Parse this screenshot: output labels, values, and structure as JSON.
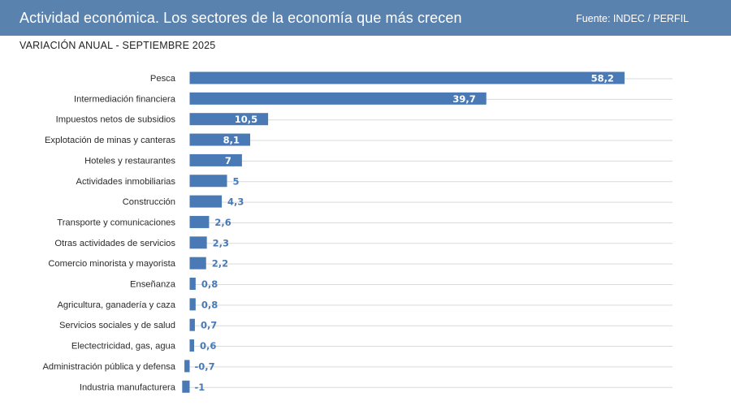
{
  "header": {
    "title": "Actividad económica. Los sectores de la economía que más crecen",
    "source": "Fuente: INDEC / PERFIL"
  },
  "subtitle": "VARIACIÓN ANUAL - SEPTIEMBRE 2025",
  "colors": {
    "header_bg": "#5a82ae",
    "bar": "#4a7ab5",
    "label_outside": "#4a7ab5",
    "gridline": "#d9d9d9"
  },
  "chart_data": {
    "type": "bar",
    "orientation": "horizontal",
    "title": "Actividad económica. Los sectores de la economía que más crecen",
    "subtitle": "VARIACIÓN ANUAL - SEPTIEMBRE 2025",
    "xlabel": "",
    "ylabel": "",
    "grid": true,
    "xlim": [
      -1,
      58.2
    ],
    "categories": [
      "Pesca",
      "Intermediación financiera",
      "Impuestos netos de subsidios",
      "Explotación de minas y canteras",
      "Hoteles y restaurantes",
      "Actividades inmobiliarias",
      "Construcción",
      "Transporte y comunicaciones",
      "Otras actividades de servicios",
      "Comercio minorista y mayorista",
      "Enseñanza",
      "Agricultura, ganadería y caza",
      "Servicios sociales y de salud",
      "Electectricidad, gas, agua",
      "Administración pública y defensa",
      "Industria manufacturera"
    ],
    "values": [
      58.2,
      39.7,
      10.5,
      8.1,
      7,
      5,
      4.3,
      2.6,
      2.3,
      2.2,
      0.8,
      0.8,
      0.7,
      0.6,
      -0.7,
      -1
    ],
    "value_labels": [
      "58,2",
      "39,7",
      "10,5",
      "8,1",
      "7",
      "5",
      "4,3",
      "2,6",
      "2,3",
      "2,2",
      "0,8",
      "0,8",
      "0,7",
      "0,6",
      "-0,7",
      "-1"
    ]
  }
}
